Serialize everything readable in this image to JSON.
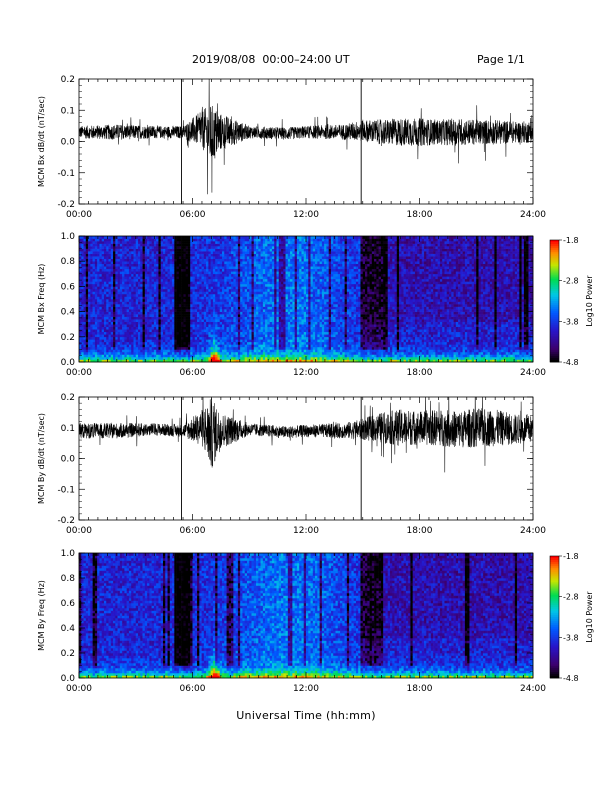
{
  "header": {
    "title": "2019/08/08  00:00–24:00 UT",
    "page": "Page 1/1"
  },
  "footer": {
    "xlabel": "Universal Time (hh:mm)"
  },
  "colors": {
    "trace": "#000000",
    "frame": "#000000",
    "background": "#ffffff"
  },
  "colorbar": {
    "label": "Log10 Power",
    "ticks": [
      "-1.8",
      "-2.8",
      "-3.8",
      "-4.8"
    ],
    "range": [
      -4.8,
      -1.8
    ],
    "colormap": "rainbow"
  },
  "chart_data": [
    {
      "type": "line",
      "title": "",
      "ylabel": "MCM Bx dB/dt (nT/sec)",
      "xlabel": "",
      "xlim": [
        "00:00",
        "24:00"
      ],
      "ylim": [
        -0.2,
        0.2
      ],
      "xticks": [
        "00:00",
        "06:00",
        "12:00",
        "18:00",
        "24:00"
      ],
      "yticks": [
        "0.2",
        "0.1",
        "0.0",
        "-0.1",
        "-0.2"
      ],
      "grid": false,
      "markers": [
        "05:25",
        "14:55"
      ],
      "series": [
        {
          "x": [
            0,
            2,
            4,
            5.5,
            6.5,
            7,
            7.5,
            9,
            11,
            12,
            14,
            15,
            16,
            17,
            18,
            19,
            20,
            21,
            22,
            23,
            24
          ],
          "y": [
            0.03,
            0.03,
            0.03,
            0.03,
            0.04,
            0.02,
            0.03,
            0.03,
            0.025,
            0.03,
            0.03,
            0.035,
            0.03,
            0.03,
            0.03,
            0.03,
            0.03,
            0.03,
            0.03,
            0.03,
            0.03
          ],
          "amp": [
            0.02,
            0.025,
            0.02,
            0.02,
            0.06,
            0.1,
            0.06,
            0.02,
            0.02,
            0.02,
            0.025,
            0.035,
            0.04,
            0.045,
            0.045,
            0.04,
            0.045,
            0.04,
            0.04,
            0.035,
            0.035
          ]
        }
      ]
    },
    {
      "type": "heatmap",
      "title": "",
      "ylabel": "MCM Bx Freq (Hz)",
      "xlabel": "",
      "xlim": [
        "00:00",
        "24:00"
      ],
      "ylim": [
        0.0,
        1.0
      ],
      "xticks": [
        "00:00",
        "06:00",
        "12:00",
        "18:00",
        "24:00"
      ],
      "yticks": [
        "1.0",
        "0.8",
        "0.6",
        "0.4",
        "0.2",
        "0.0"
      ],
      "zlabel": "Log10 Power",
      "zlim": [
        -4.8,
        -1.8
      ]
    },
    {
      "type": "line",
      "title": "",
      "ylabel": "MCM By dB/dt (nT/sec)",
      "xlabel": "",
      "xlim": [
        "00:00",
        "24:00"
      ],
      "ylim": [
        -0.2,
        0.2
      ],
      "xticks": [
        "00:00",
        "06:00",
        "12:00",
        "18:00",
        "24:00"
      ],
      "yticks": [
        "0.2",
        "0.1",
        "0.0",
        "-0.1",
        "-0.2"
      ],
      "grid": false,
      "markers": [
        "05:25",
        "14:55"
      ],
      "series": [
        {
          "x": [
            0,
            2,
            4,
            5.5,
            6.5,
            7,
            7.5,
            9,
            11,
            12,
            14,
            15,
            16,
            17,
            18,
            19,
            20,
            21,
            22,
            23,
            24
          ],
          "y": [
            0.09,
            0.09,
            0.095,
            0.09,
            0.1,
            0.08,
            0.09,
            0.095,
            0.085,
            0.09,
            0.09,
            0.095,
            0.1,
            0.1,
            0.1,
            0.1,
            0.095,
            0.1,
            0.1,
            0.095,
            0.095
          ],
          "amp": [
            0.025,
            0.025,
            0.02,
            0.02,
            0.06,
            0.12,
            0.06,
            0.02,
            0.02,
            0.02,
            0.025,
            0.035,
            0.05,
            0.06,
            0.055,
            0.06,
            0.06,
            0.065,
            0.06,
            0.05,
            0.045
          ]
        }
      ]
    },
    {
      "type": "heatmap",
      "title": "",
      "ylabel": "MCM By Freq (Hz)",
      "xlabel": "",
      "xlim": [
        "00:00",
        "24:00"
      ],
      "ylim": [
        0.0,
        1.0
      ],
      "xticks": [
        "00:00",
        "06:00",
        "12:00",
        "18:00",
        "24:00"
      ],
      "yticks": [
        "1.0",
        "0.8",
        "0.6",
        "0.4",
        "0.2",
        "0.0"
      ],
      "zlabel": "Log10 Power",
      "zlim": [
        -4.8,
        -1.8
      ]
    }
  ]
}
